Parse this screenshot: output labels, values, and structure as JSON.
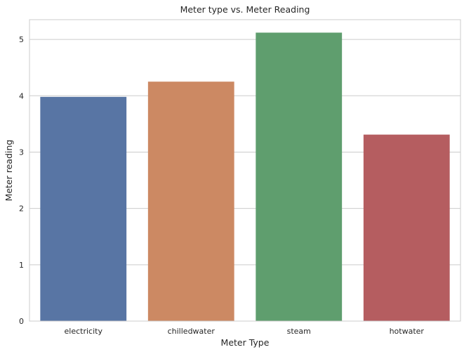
{
  "chart_data": {
    "type": "bar",
    "title": "Meter type vs. Meter Reading",
    "xlabel": "Meter Type",
    "ylabel": "Meter reading",
    "categories": [
      "electricity",
      "chilledwater",
      "steam",
      "hotwater"
    ],
    "values": [
      3.98,
      4.25,
      5.12,
      3.31
    ],
    "colors": [
      "#5875a4",
      "#cc8963",
      "#5f9e6e",
      "#b55d60"
    ],
    "ylim": [
      0,
      5.35
    ],
    "yticks": [
      0,
      1,
      2,
      3,
      4,
      5
    ],
    "grid": true,
    "legend": "none"
  }
}
